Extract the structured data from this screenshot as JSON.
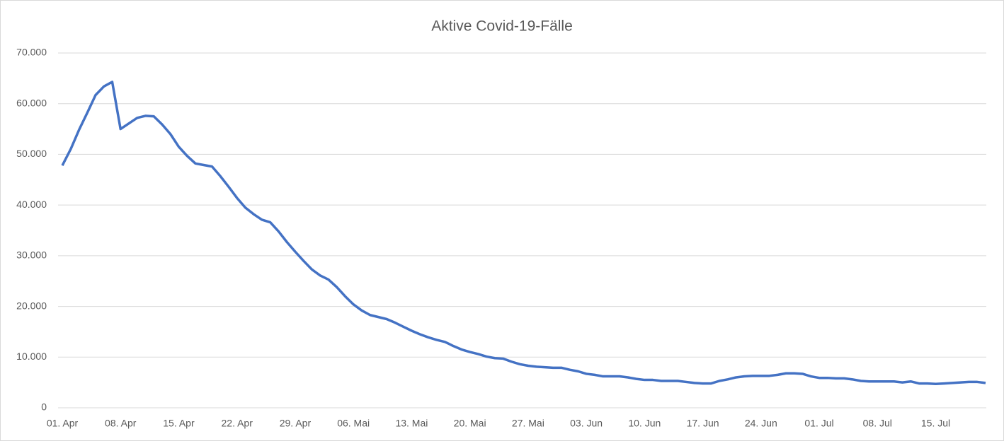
{
  "chart_data": {
    "type": "line",
    "title": "Aktive Covid-19-Fälle",
    "categories": [
      "01. Apr",
      null,
      null,
      null,
      null,
      null,
      null,
      "08. Apr",
      null,
      null,
      null,
      null,
      null,
      null,
      "15. Apr",
      null,
      null,
      null,
      null,
      null,
      null,
      "22. Apr",
      null,
      null,
      null,
      null,
      null,
      null,
      "29. Apr",
      null,
      null,
      null,
      null,
      null,
      null,
      "06. Mai",
      null,
      null,
      null,
      null,
      null,
      null,
      "13. Mai",
      null,
      null,
      null,
      null,
      null,
      null,
      "20. Mai",
      null,
      null,
      null,
      null,
      null,
      null,
      "27. Mai",
      null,
      null,
      null,
      null,
      null,
      null,
      "03. Jun",
      null,
      null,
      null,
      null,
      null,
      null,
      "10. Jun",
      null,
      null,
      null,
      null,
      null,
      null,
      "17. Jun",
      null,
      null,
      null,
      null,
      null,
      null,
      "24. Jun",
      null,
      null,
      null,
      null,
      null,
      null,
      "01. Jul",
      null,
      null,
      null,
      null,
      null,
      null,
      "08. Jul",
      null,
      null,
      null,
      null,
      null,
      null,
      "15. Jul",
      null,
      null,
      null,
      null,
      null,
      null
    ],
    "series": [
      {
        "color": "#4472c4",
        "values": [
          47800,
          51000,
          54800,
          58200,
          61700,
          63400,
          64300,
          55000,
          56100,
          57200,
          57600,
          57500,
          55900,
          54000,
          51500,
          49700,
          48200,
          47900,
          47600,
          45700,
          43600,
          41400,
          39500,
          38200,
          37100,
          36600,
          34800,
          32700,
          30800,
          29000,
          27300,
          26100,
          25300,
          23800,
          22000,
          20400,
          19200,
          18300,
          17900,
          17500,
          16800,
          16000,
          15200,
          14500,
          13900,
          13400,
          13000,
          12200,
          11500,
          11000,
          10600,
          10100,
          9800,
          9700,
          9100,
          8600,
          8300,
          8100,
          8000,
          7900,
          7900,
          7500,
          7200,
          6700,
          6500,
          6200,
          6200,
          6200,
          6000,
          5700,
          5500,
          5500,
          5300,
          5300,
          5300,
          5100,
          4900,
          4800,
          4800,
          5300,
          5600,
          6000,
          6200,
          6300,
          6300,
          6300,
          6500,
          6800,
          6800,
          6700,
          6200,
          5900,
          5900,
          5800,
          5800,
          5600,
          5300,
          5200,
          5200,
          5200,
          5200,
          5000,
          5200,
          4800,
          4800,
          4700,
          4800,
          4900,
          5000,
          5100,
          5100,
          4900
        ]
      }
    ],
    "ylim": [
      0,
      70000
    ],
    "yticks": [
      0,
      {
        "value": 10000,
        "label": "10.000"
      },
      {
        "value": 20000,
        "label": "20.000"
      },
      {
        "value": 30000,
        "label": "30.000"
      },
      {
        "value": 40000,
        "label": "40.000"
      },
      {
        "value": 50000,
        "label": "50.000"
      },
      {
        "value": 60000,
        "label": "60.000"
      },
      {
        "value": 70000,
        "label": "70.000"
      }
    ],
    "grid": true
  }
}
